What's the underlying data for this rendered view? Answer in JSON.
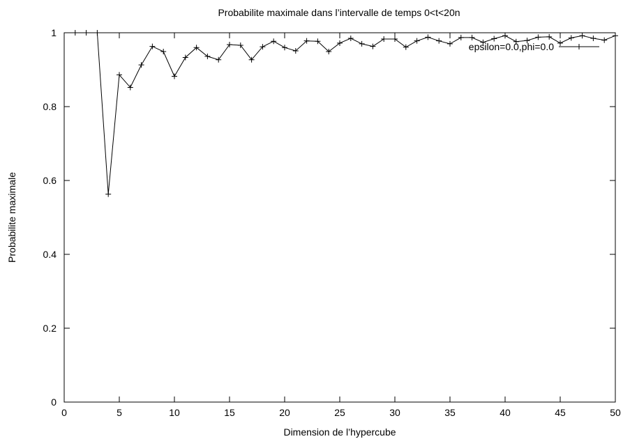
{
  "chart_data": {
    "type": "line",
    "title": "Probabilite maximale dans l’intervalle de temps 0<t<20n",
    "xlabel": "Dimension de l’hypercube",
    "ylabel": "Probabilite maximale",
    "xlim": [
      0,
      50
    ],
    "ylim": [
      0,
      1
    ],
    "x_ticks": [
      "0",
      "5",
      "10",
      "15",
      "20",
      "25",
      "30",
      "35",
      "40",
      "45",
      "50"
    ],
    "y_ticks": [
      "0",
      "0.2",
      "0.4",
      "0.6",
      "0.8",
      "1"
    ],
    "grid": false,
    "legend_position": "top-right",
    "marker": "plus",
    "series": [
      {
        "name": "epsilon=0.0,phi=0.0",
        "color": "#000000",
        "x": [
          1,
          2,
          3,
          4,
          5,
          6,
          7,
          8,
          9,
          10,
          11,
          12,
          13,
          14,
          15,
          16,
          17,
          18,
          19,
          20,
          21,
          22,
          23,
          24,
          25,
          26,
          27,
          28,
          29,
          30,
          31,
          32,
          33,
          34,
          35,
          36,
          37,
          38,
          39,
          40,
          41,
          42,
          43,
          44,
          45,
          46,
          47,
          48,
          49,
          50
        ],
        "y": [
          1.0,
          1.0,
          1.0,
          0.563,
          0.886,
          0.852,
          0.913,
          0.963,
          0.949,
          0.882,
          0.933,
          0.96,
          0.936,
          0.927,
          0.968,
          0.966,
          0.927,
          0.962,
          0.977,
          0.96,
          0.951,
          0.978,
          0.977,
          0.949,
          0.972,
          0.985,
          0.97,
          0.963,
          0.983,
          0.983,
          0.961,
          0.978,
          0.988,
          0.978,
          0.97,
          0.987,
          0.987,
          0.974,
          0.984,
          0.992,
          0.976,
          0.979,
          0.988,
          0.989,
          0.972,
          0.986,
          0.992,
          0.985,
          0.98,
          0.992
        ]
      }
    ]
  }
}
